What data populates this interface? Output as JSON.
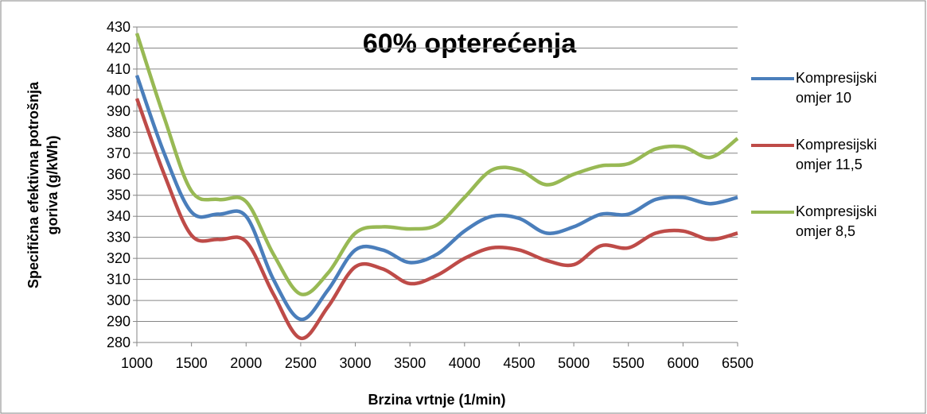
{
  "chart_data": {
    "type": "line",
    "title": "60% opterećenja",
    "x_label": "Brzina vrtnje (1/min)",
    "y_label": [
      "Specifična efektivna potrošnja",
      "goriva (g/kWh)"
    ],
    "x": [
      1000,
      1250,
      1500,
      1750,
      2000,
      2250,
      2500,
      2750,
      3000,
      3250,
      3500,
      3750,
      4000,
      4250,
      4500,
      4750,
      5000,
      5250,
      5500,
      5750,
      6000,
      6250,
      6500
    ],
    "xlim": [
      1000,
      6500
    ],
    "xticks": [
      1000,
      1500,
      2000,
      2500,
      3000,
      3500,
      4000,
      4500,
      5000,
      5500,
      6000,
      6500
    ],
    "ylim": [
      280,
      430
    ],
    "yticks": [
      280,
      290,
      300,
      310,
      320,
      330,
      340,
      350,
      360,
      370,
      380,
      390,
      400,
      410,
      420,
      430
    ],
    "grid": true,
    "legend": "right",
    "series": [
      {
        "name": "Kompresijski omjer 10",
        "color": "#4a7ebb",
        "values": [
          407,
          370,
          342,
          341,
          340,
          310,
          291,
          305,
          324,
          324,
          318,
          322,
          333,
          340,
          339,
          332,
          335,
          341,
          341,
          348,
          349,
          346,
          349
        ]
      },
      {
        "name": "Kompresijski omjer 11,5",
        "color": "#be4b48",
        "values": [
          396,
          360,
          331,
          329,
          328,
          303,
          282,
          297,
          316,
          315,
          308,
          312,
          320,
          325,
          324,
          319,
          317,
          326,
          325,
          332,
          333,
          329,
          332
        ]
      },
      {
        "name": "Kompresijski omjer 8,5",
        "color": "#98b954",
        "values": [
          427,
          387,
          352,
          348,
          347,
          322,
          303,
          313,
          332,
          335,
          334,
          336,
          349,
          362,
          362,
          355,
          360,
          364,
          365,
          372,
          373,
          368,
          377
        ]
      }
    ]
  }
}
